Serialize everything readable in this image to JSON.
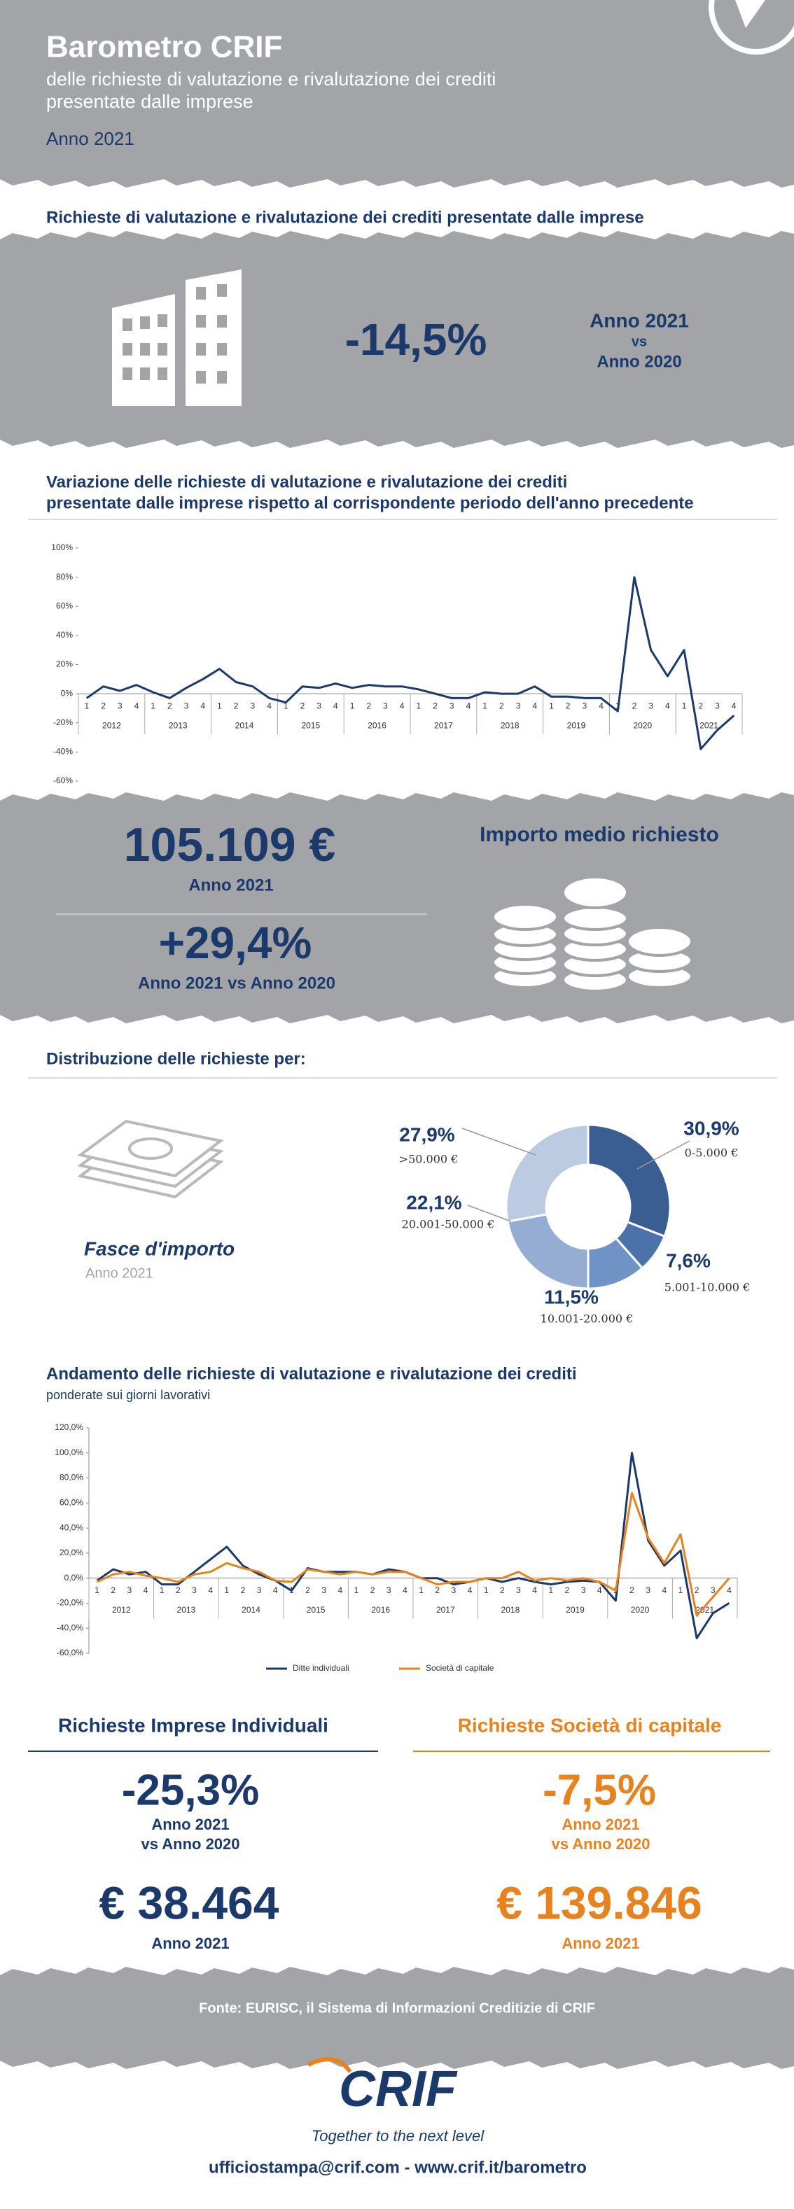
{
  "header": {
    "title": "Barometro CRIF",
    "subtitle": [
      "delle richieste di valutazione e rivalutazione dei crediti",
      "presentate dalle imprese"
    ],
    "year": "Anno 2021"
  },
  "summary": {
    "title": "Richieste di valutazione e rivalutazione dei crediti presentate dalle imprese",
    "value": "-14,5%",
    "comparison": [
      "Anno 2021",
      "vs",
      "Anno 2020"
    ]
  },
  "average": {
    "title": "Importo medio richiesto",
    "amount": "105.109 €",
    "amount_period": "Anno 2021",
    "change": "+29,4%",
    "change_period": "Anno 2021 vs Anno 2020"
  },
  "segments": [
    {
      "title": "Richieste Imprese Individuali",
      "change": "-25,3%",
      "comparison": [
        "Anno 2021",
        "vs Anno 2020"
      ],
      "amount": "€ 38.464",
      "amount_period": "Anno 2021"
    },
    {
      "title": "Richieste Società di capitale",
      "change": "-7,5%",
      "comparison": [
        "Anno 2021",
        "vs Anno 2020"
      ],
      "amount": "€ 139.846",
      "amount_period": "Anno 2021"
    }
  ],
  "footer": {
    "source": "Fonte: EURISC, il Sistema di Informazioni Creditizie di CRIF",
    "logo": "CRIF",
    "tagline": "Together to the next level",
    "contact": "ufficiostampa@crif.com - www.crif.it/barometro"
  },
  "chart_data": [
    {
      "type": "line",
      "title": [
        "Variazione delle richieste di valutazione e rivalutazione dei crediti",
        "presentate dalle imprese rispetto al corrispondente periodo dell'anno precedente"
      ],
      "categories": [
        "1",
        "2",
        "3",
        "4",
        "1",
        "2",
        "3",
        "4",
        "1",
        "2",
        "3",
        "4",
        "1",
        "2",
        "3",
        "4",
        "1",
        "2",
        "3",
        "4",
        "1",
        "2",
        "3",
        "4",
        "1",
        "2",
        "3",
        "4",
        "1",
        "2",
        "3",
        "4",
        "1",
        "2",
        "3",
        "4",
        "1",
        "2",
        "3",
        "4"
      ],
      "groups": [
        "2012",
        "2013",
        "2014",
        "2015",
        "2016",
        "2017",
        "2018",
        "2019",
        "2020",
        "2021"
      ],
      "values": [
        -3,
        5,
        2,
        6,
        1,
        -3,
        4,
        10,
        17,
        8,
        5,
        -3,
        -6,
        5,
        4,
        7,
        4,
        6,
        5,
        5,
        3,
        0,
        -3,
        -3,
        1,
        0,
        0,
        5,
        -2,
        -2,
        -3,
        -3,
        -12,
        80,
        30,
        12,
        30,
        -38,
        -25,
        -15
      ],
      "color": "#1b3a6b",
      "ylim": [
        -60,
        100
      ],
      "yticks": [
        {
          "value": -60,
          "label": "-60%"
        },
        {
          "value": -40,
          "label": "-40%"
        },
        {
          "value": -20,
          "label": "-20%"
        },
        {
          "value": 0,
          "label": "0%"
        },
        {
          "value": 20,
          "label": "20%"
        },
        {
          "value": 40,
          "label": "40%"
        },
        {
          "value": 60,
          "label": "60%"
        },
        {
          "value": 80,
          "label": "80%"
        },
        {
          "value": 100,
          "label": "100%"
        }
      ],
      "grid": false
    },
    {
      "type": "pie",
      "title": "Distribuzione delle richieste per:",
      "subtitle": "Fasce d'importo",
      "period": "Anno 2021",
      "categories": [
        "0-5.000 €",
        "5.001-10.000 €",
        "10.001-20.000 €",
        "20.001-50.000 €",
        ">50.000 €"
      ],
      "values": [
        30.9,
        7.6,
        11.5,
        22.1,
        27.9
      ],
      "value_labels": [
        "30,9%",
        "7,6%",
        "11,5%",
        "22,1%",
        "27,9%"
      ],
      "colors": [
        "#3b5e92",
        "#4c72aa",
        "#7093c6",
        "#95acd3",
        "#bccbe2"
      ]
    },
    {
      "type": "line",
      "title": "Andamento delle richieste di valutazione e rivalutazione dei crediti",
      "subtitle": "ponderate sui giorni lavorativi",
      "categories": [
        "1",
        "2",
        "3",
        "4",
        "1",
        "2",
        "3",
        "4",
        "1",
        "2",
        "3",
        "4",
        "1",
        "2",
        "3",
        "4",
        "1",
        "2",
        "3",
        "4",
        "1",
        "2",
        "3",
        "4",
        "1",
        "2",
        "3",
        "4",
        "1",
        "2",
        "3",
        "4",
        "1",
        "2",
        "3",
        "4",
        "1",
        "2",
        "3",
        "4"
      ],
      "groups": [
        "2012",
        "2013",
        "2014",
        "2015",
        "2016",
        "2017",
        "2018",
        "2019",
        "2020",
        "2021"
      ],
      "series": [
        {
          "name": "Ditte individuali",
          "color": "#1b3a6b",
          "values": [
            -2,
            7,
            3,
            5,
            -5,
            -5,
            5,
            15,
            25,
            10,
            3,
            -2,
            -10,
            8,
            5,
            5,
            5,
            3,
            7,
            5,
            0,
            0,
            -5,
            -3,
            0,
            -3,
            0,
            -3,
            -5,
            -3,
            -2,
            -3,
            -18,
            100,
            30,
            10,
            22,
            -48,
            -28,
            -20
          ]
        },
        {
          "name": "Società di capitale",
          "color": "#e8821e",
          "values": [
            -3,
            3,
            5,
            2,
            0,
            -3,
            3,
            5,
            12,
            8,
            5,
            -2,
            -3,
            7,
            5,
            3,
            5,
            3,
            5,
            5,
            0,
            -5,
            -3,
            -3,
            0,
            0,
            5,
            -2,
            0,
            -2,
            0,
            -3,
            -10,
            68,
            32,
            12,
            35,
            -30,
            -15,
            0
          ]
        }
      ],
      "ylim": [
        -60,
        120
      ],
      "yticks": [
        {
          "value": -60,
          "label": "-60,0%"
        },
        {
          "value": -40,
          "label": "-40,0%"
        },
        {
          "value": -20,
          "label": "-20,0%"
        },
        {
          "value": 0,
          "label": "0,0%"
        },
        {
          "value": 20,
          "label": "20,0%"
        },
        {
          "value": 40,
          "label": "40,0%"
        },
        {
          "value": 60,
          "label": "60,0%"
        },
        {
          "value": 80,
          "label": "80,0%"
        },
        {
          "value": 100,
          "label": "100,0%"
        },
        {
          "value": 120,
          "label": "120,0%"
        }
      ],
      "grid": false,
      "legend": "bottom"
    }
  ]
}
